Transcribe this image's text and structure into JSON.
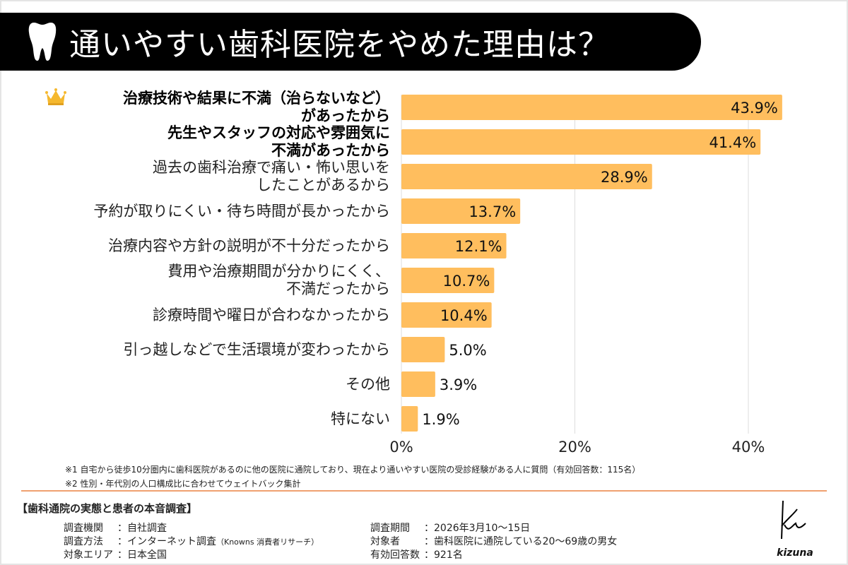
{
  "title": "通いやすい歯科医院をやめた理由は？",
  "icons": {
    "title": "tooth-icon",
    "top_item": "crown-icon"
  },
  "colors": {
    "bar": "#FFBE5E",
    "title_bg": "#000000",
    "rule": "#F0A070"
  },
  "chart_data": {
    "type": "bar",
    "orientation": "horizontal",
    "categories": [
      "治療技術や結果に不満（治らないなど）がある​ったから",
      "先生やスタッフの対応や雰囲気に不満があったから",
      "過去の歯科治療で痛い・怖い思いをしたことがあるから",
      "予約が取りにくい・待ち時間が長かったから",
      "治療内容や方針の説明が不十分だったから",
      "費用や治療期間が分かりにくく、不満だったから",
      "診療時間や曜日が合わなかったから",
      "引っ越しなどで生活環境が変わったから",
      "その他",
      "特にない"
    ],
    "category_lines": [
      [
        "治療技術や結果に不満（治らないなど）",
        "があったから"
      ],
      [
        "先生やスタッフの対応や雰囲気に",
        "不満があったから"
      ],
      [
        "過去の歯科治療で痛い・怖い思いを",
        "したことがあるから"
      ],
      [
        "予約が取りにくい・待ち時間が長かったから"
      ],
      [
        "治療内容や方針の説明が不十分だったから"
      ],
      [
        "費用や治療期間が分かりにくく、",
        "不満だったから"
      ],
      [
        "診療時間や曜日が合わなかったから"
      ],
      [
        "引っ越しなどで生活環境が変わったから"
      ],
      [
        "その他"
      ],
      [
        "特にない"
      ]
    ],
    "values": [
      43.9,
      41.4,
      28.9,
      13.7,
      12.1,
      10.7,
      10.4,
      5.0,
      3.9,
      1.9
    ],
    "value_labels": [
      "43.9%",
      "41.4%",
      "28.9%",
      "13.7%",
      "12.1%",
      "10.7%",
      "10.4%",
      "5.0%",
      "3.9%",
      "1.9%"
    ],
    "xlim": [
      0,
      44
    ],
    "xticks": [
      "0%",
      "20%",
      "40%"
    ],
    "xtick_values": [
      0,
      20,
      40
    ],
    "grid": true,
    "legend": "none"
  },
  "footnotes": [
    "※1 自宅から徒歩10分圏内に歯科医院があるのに他の医院に通院しており、現在より通いやすい医院の受診経験がある人に質問（有効回答数：115名）",
    "※2 性別・年代別の人口構成比に合わせてウェイトバック集計"
  ],
  "survey": {
    "heading": "【歯科通院の実態と患者の本音調査】",
    "left": [
      {
        "key": "調査機関",
        "value": "：自社調査"
      },
      {
        "key": "調査方法",
        "value": "：インターネット調査",
        "note": "（Knowns 消費者リサーチ）"
      },
      {
        "key": "対象エリア",
        "value": "：日本全国"
      }
    ],
    "right": [
      {
        "key": "調査期間",
        "value": "：2026年3月10〜15日"
      },
      {
        "key": "対象者",
        "value": "：歯科医院に通院している20〜69歳の男女"
      },
      {
        "key": "有効回答数",
        "value": "：921名"
      }
    ]
  },
  "logo": {
    "mark": "K",
    "text": "kizuna"
  }
}
